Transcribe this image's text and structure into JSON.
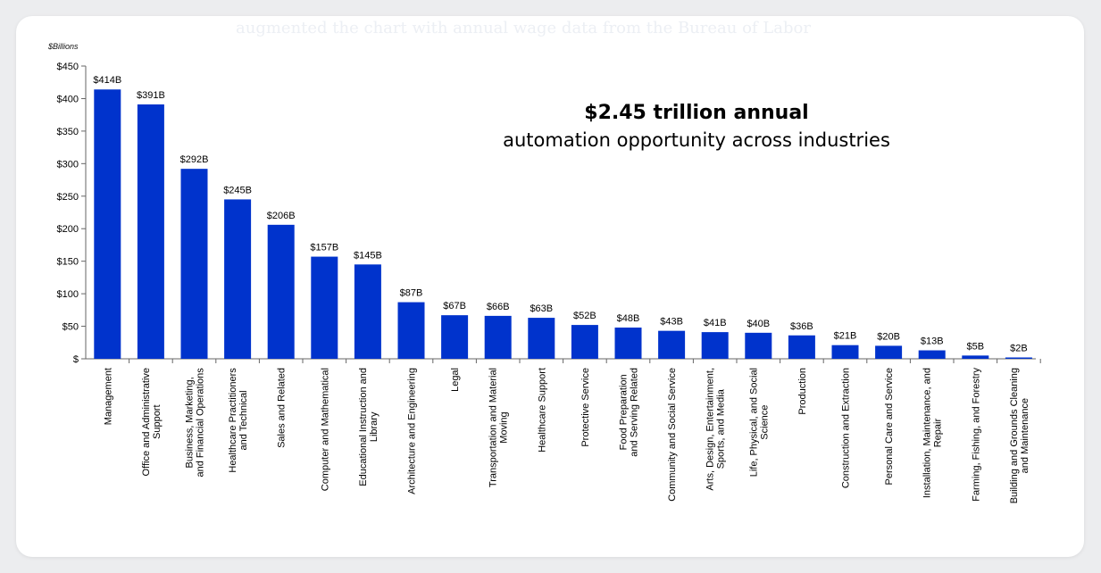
{
  "ghost_text": "augmented the chart with annual wage data from the Bureau of Labor",
  "chart_data": {
    "type": "bar",
    "title": "$2.45 trillion annual",
    "subtitle": "automation opportunity across industries",
    "ylabel": "$Billions",
    "ylim": [
      0,
      450
    ],
    "yticks": [
      "$",
      "$50",
      "$100",
      "$150",
      "$200",
      "$250",
      "$300",
      "$350",
      "$400",
      "$450"
    ],
    "grid": false,
    "bar_color": "#0033cc",
    "categories": [
      "Management",
      "Office and Administrative Support",
      "Business, Marketing, and Financial Operations",
      "Healthcare Practitioners and Technical",
      "Sales and Related",
      "Computer and Mathematical",
      "Educational Instruction and Library",
      "Architecture and Engineering",
      "Legal",
      "Transportation and Material Moving",
      "Healthcare Support",
      "Protective Service",
      "Food Preparation and Serving Related",
      "Community and Social Service",
      "Arts, Design, Entertainment, Sports, and Media",
      "Life, Physical, and Social Science",
      "Production",
      "Construction and Extraction",
      "Personal Care and Service",
      "Installation, Maintenance, and Repair",
      "Farming, Fishing, and Forestry",
      "Building and Grounds Cleaning and Maintenance"
    ],
    "category_lines": [
      [
        "Management"
      ],
      [
        "Office and Administrative",
        "Support"
      ],
      [
        "Business, Marketing,",
        "and Financial Operations"
      ],
      [
        "Healthcare Practitioners",
        "and Technical"
      ],
      [
        "Sales and Related"
      ],
      [
        "Computer and Mathematical"
      ],
      [
        "Educational Instruction and",
        "Library"
      ],
      [
        "Architecture and Engineering"
      ],
      [
        "Legal"
      ],
      [
        "Transportation and Material",
        "Moving"
      ],
      [
        "Healthcare Support"
      ],
      [
        "Protective Service"
      ],
      [
        "Food Preparation",
        "and Serving Related"
      ],
      [
        "Community and Social Service"
      ],
      [
        "Arts, Design, Entertainment,",
        "Sports, and Media"
      ],
      [
        "Life, Physical, and Social",
        "Science"
      ],
      [
        "Production"
      ],
      [
        "Construction and Extraction"
      ],
      [
        "Personal Care and Service"
      ],
      [
        "Installation, Maintenance, and",
        "Repair"
      ],
      [
        "Farming, Fishing, and Forestry"
      ],
      [
        "Building and Grounds Cleaning",
        "and Maintenance"
      ]
    ],
    "values": [
      414,
      391,
      292,
      245,
      206,
      157,
      145,
      87,
      67,
      66,
      63,
      52,
      48,
      43,
      41,
      40,
      36,
      21,
      20,
      13,
      5,
      2
    ],
    "value_labels": [
      "$414B",
      "$391B",
      "$292B",
      "$245B",
      "$206B",
      "$157B",
      "$145B",
      "$87B",
      "$67B",
      "$66B",
      "$63B",
      "$52B",
      "$48B",
      "$43B",
      "$41B",
      "$40B",
      "$36B",
      "$21B",
      "$20B",
      "$13B",
      "$5B",
      "$2B"
    ]
  }
}
